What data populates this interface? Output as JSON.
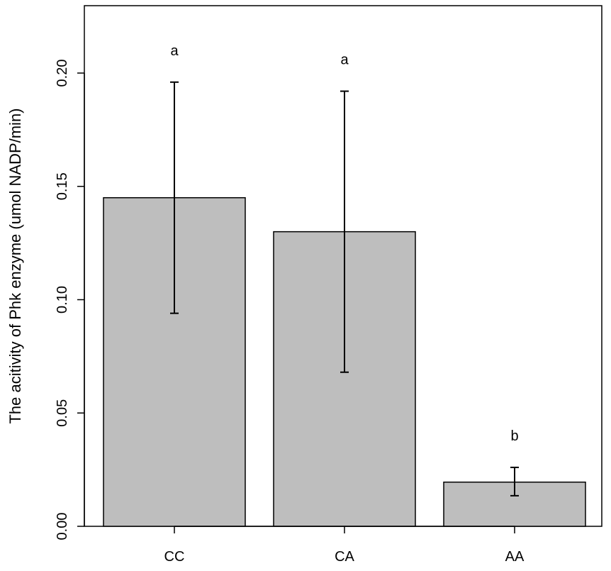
{
  "chart_data": {
    "type": "bar",
    "title": "",
    "xlabel": "",
    "ylabel": "The acitivity of Phk enzyme (umol NADP/min)",
    "categories": [
      "CC",
      "CA",
      "AA"
    ],
    "values": [
      0.145,
      0.13,
      0.0195
    ],
    "error_bars": [
      {
        "low": 0.094,
        "high": 0.196
      },
      {
        "low": 0.068,
        "high": 0.192
      },
      {
        "low": 0.0135,
        "high": 0.026
      }
    ],
    "significance_letters": [
      "a",
      "a",
      "b"
    ],
    "yticks": [
      0.0,
      0.05,
      0.1,
      0.15,
      0.2
    ],
    "ytick_labels": [
      "0.00",
      "0.05",
      "0.10",
      "0.15",
      "0.20"
    ],
    "ylim": [
      0,
      0.23
    ],
    "grid": false,
    "colors": {
      "bar_fill": "#bebebe",
      "bar_stroke": "#000000",
      "error_bar": "#000000"
    }
  }
}
